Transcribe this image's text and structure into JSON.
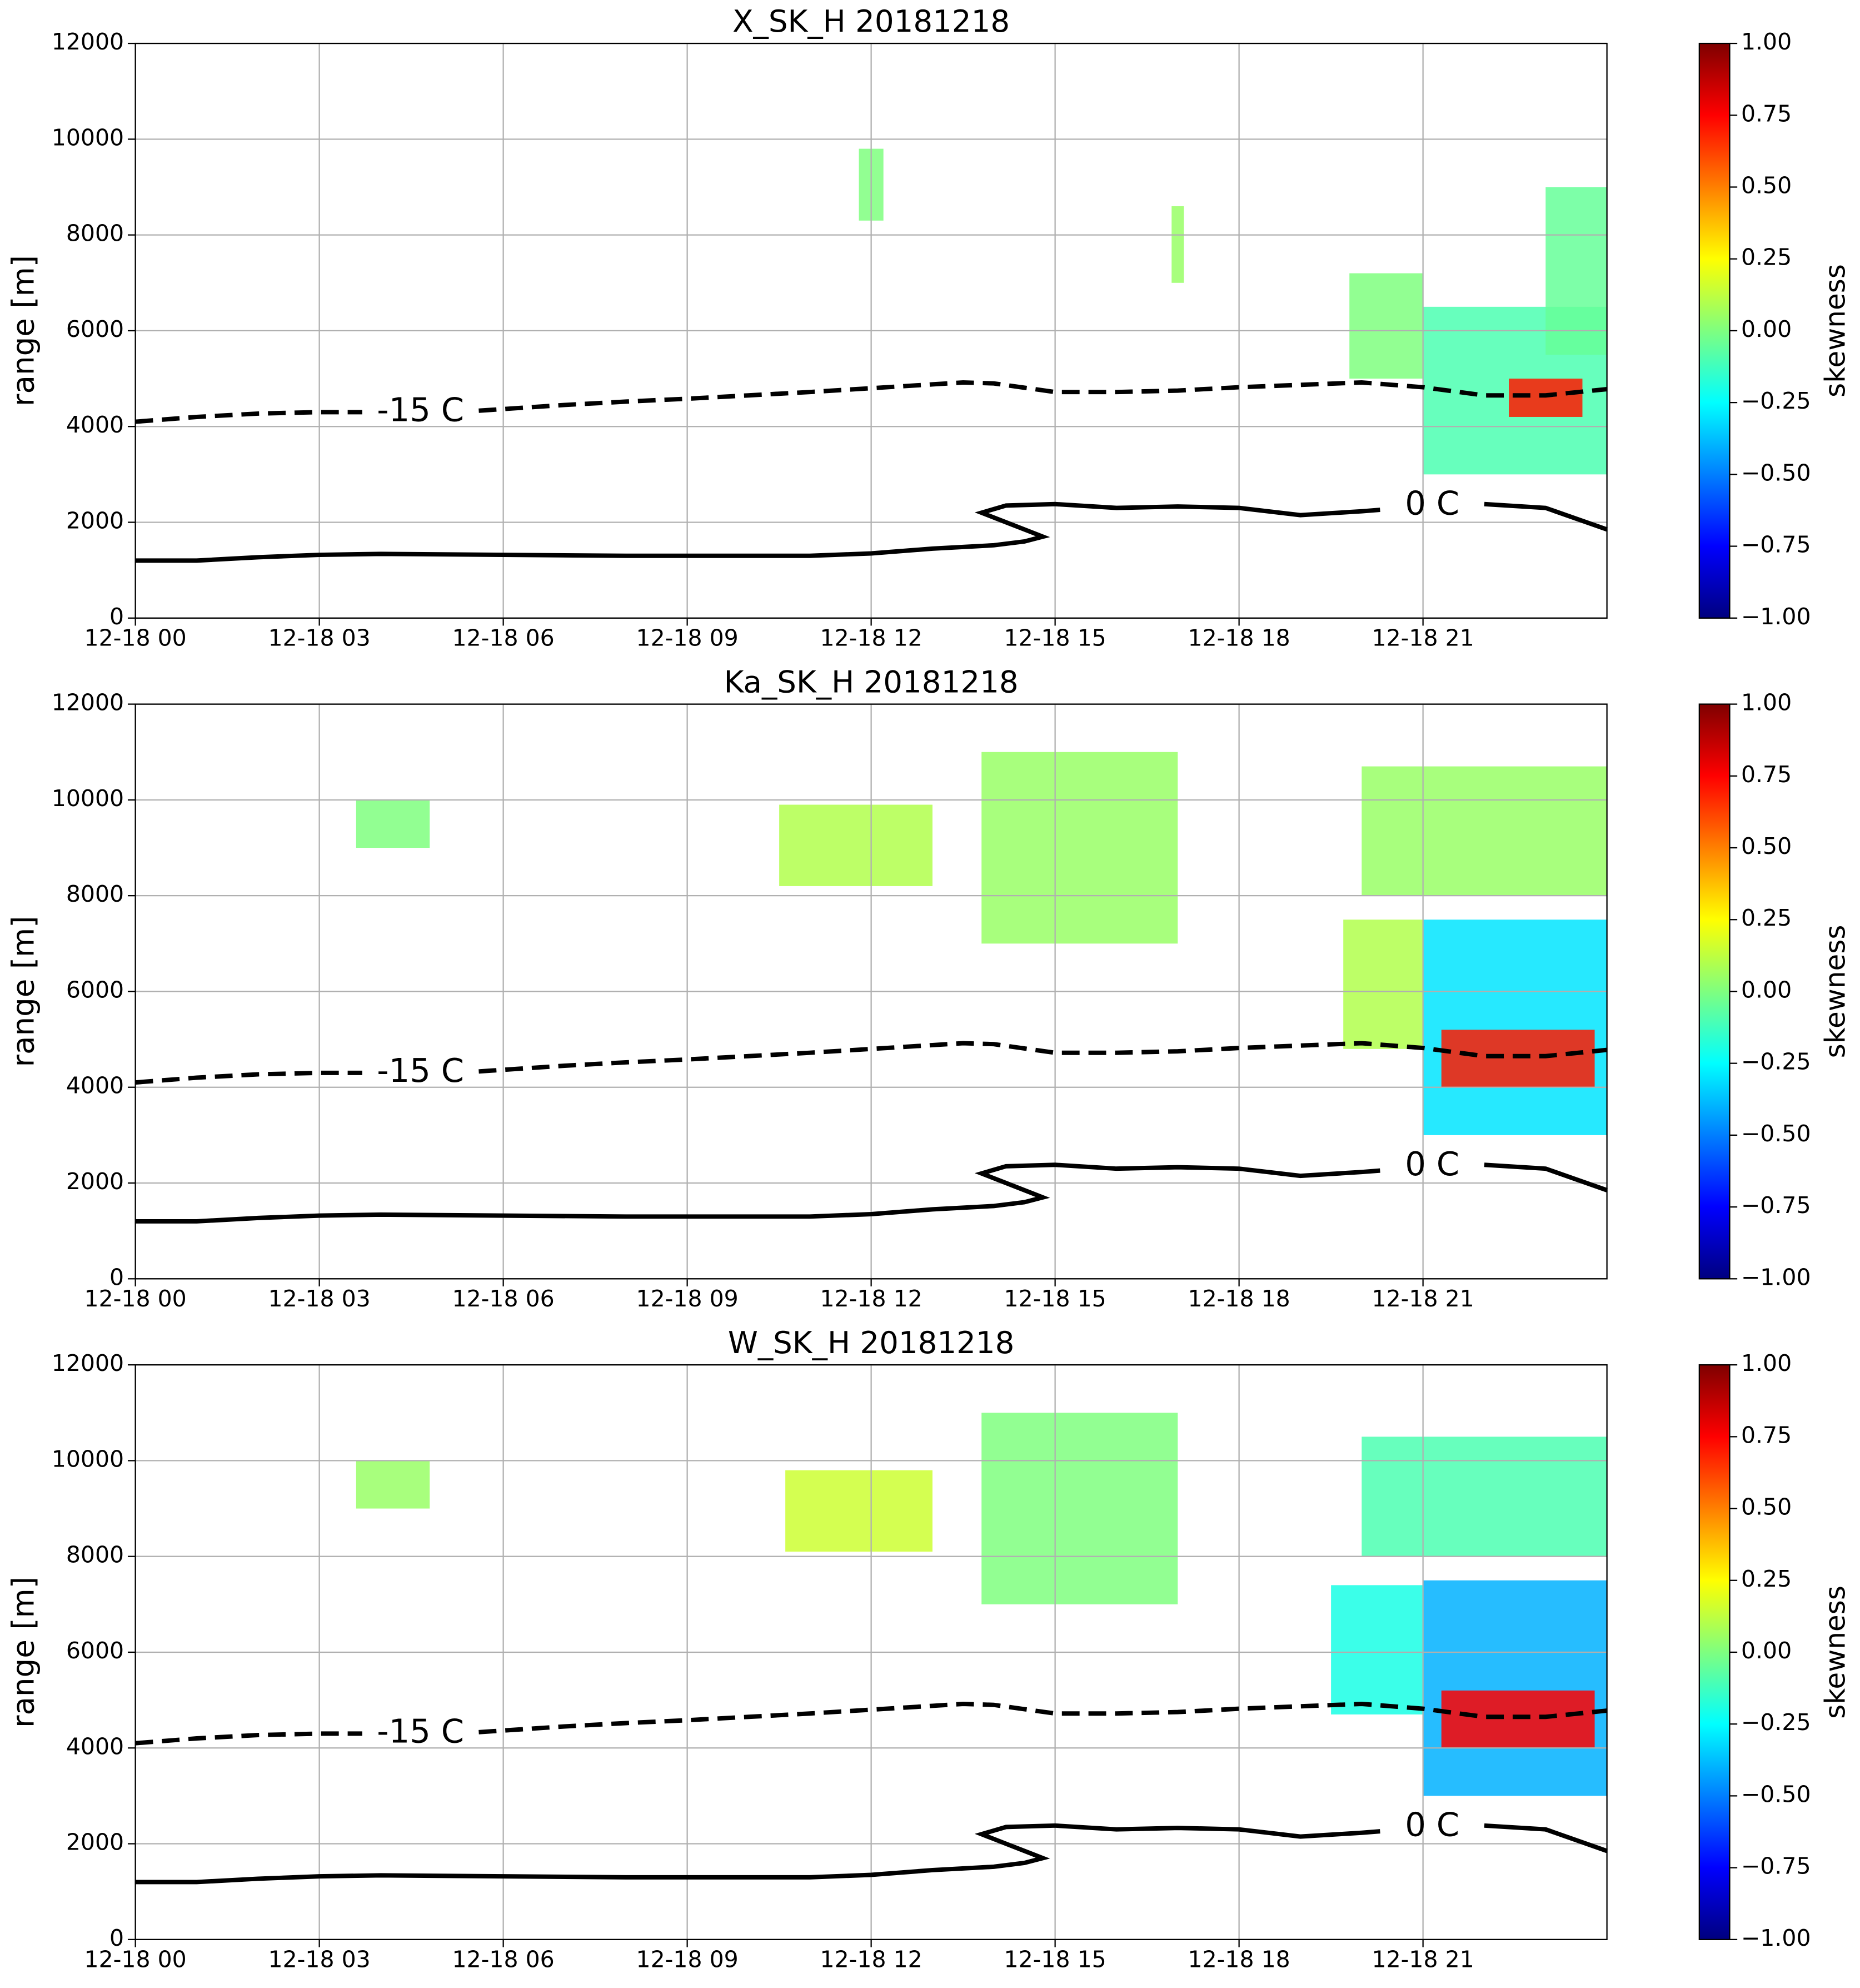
{
  "chart_data": [
    {
      "type": "heatmap",
      "title": "X_SK_H 20181218",
      "ylabel": "range [m]",
      "xlim": [
        0,
        24
      ],
      "ylim": [
        0,
        12000
      ],
      "xticks": [
        {
          "value": 0,
          "label": "12-18 00"
        },
        {
          "value": 3,
          "label": "12-18 03"
        },
        {
          "value": 6,
          "label": "12-18 06"
        },
        {
          "value": 9,
          "label": "12-18 09"
        },
        {
          "value": 12,
          "label": "12-18 12"
        },
        {
          "value": 15,
          "label": "12-18 15"
        },
        {
          "value": 18,
          "label": "12-18 18"
        },
        {
          "value": 21,
          "label": "12-18 21"
        }
      ],
      "yticks": [
        0,
        2000,
        4000,
        6000,
        8000,
        10000,
        12000
      ],
      "grid": true,
      "colorbar": {
        "label": "skewness",
        "clim": [
          -1,
          1
        ],
        "colors": [
          "#00007f",
          "#0000ff",
          "#007fff",
          "#00ffff",
          "#7fff7f",
          "#ffff00",
          "#ff7f00",
          "#ff0000",
          "#7f0000"
        ],
        "ticks": [
          {
            "value": 1,
            "label": "1.00"
          },
          {
            "value": 0.75,
            "label": "0.75"
          },
          {
            "value": 0.5,
            "label": "0.50"
          },
          {
            "value": 0.25,
            "label": "0.25"
          },
          {
            "value": 0,
            "label": "0.00"
          },
          {
            "value": -0.25,
            "label": "−0.25"
          },
          {
            "value": -0.5,
            "label": "−0.50"
          },
          {
            "value": -0.75,
            "label": "−0.75"
          },
          {
            "value": -1,
            "label": "−1.00"
          }
        ]
      },
      "cells": [
        {
          "x": [
            21,
            24
          ],
          "y": [
            3000,
            6500
          ],
          "value": -0.1
        },
        {
          "x": [
            19.8,
            21
          ],
          "y": [
            5000,
            7200
          ],
          "value": 0
        },
        {
          "x": [
            22.4,
            23.6
          ],
          "y": [
            4200,
            5000
          ],
          "value": 0.7
        },
        {
          "x": [
            23,
            24
          ],
          "y": [
            5500,
            9000
          ],
          "value": -0.05
        },
        {
          "x": [
            11.8,
            12.2
          ],
          "y": [
            8300,
            9800
          ],
          "value": 0
        },
        {
          "x": [
            16.9,
            17.1
          ],
          "y": [
            7000,
            8600
          ],
          "value": 0.05
        }
      ],
      "series": [
        {
          "name": "-15 C",
          "dash": true,
          "color": "#000000",
          "x": [
            0,
            1,
            2,
            3,
            3.7,
            null,
            5.6,
            7,
            8,
            9,
            10,
            11,
            12,
            13,
            13.5,
            14,
            15,
            16,
            17,
            18,
            19,
            20,
            21,
            22,
            23,
            24
          ],
          "values": [
            4100,
            4200,
            4270,
            4300,
            4300,
            null,
            4330,
            4450,
            4520,
            4580,
            4650,
            4720,
            4800,
            4880,
            4920,
            4900,
            4720,
            4720,
            4750,
            4820,
            4870,
            4920,
            4820,
            4650,
            4650,
            4780
          ]
        },
        {
          "name": "0 C",
          "dash": false,
          "color": "#000000",
          "x": [
            0,
            1,
            2,
            3,
            4,
            6,
            8,
            11,
            12,
            13,
            14,
            14.5,
            14.8,
            14.6,
            14.2,
            13.8,
            14.2,
            15,
            16,
            17,
            18,
            19,
            20,
            20.3,
            null,
            22,
            23,
            24
          ],
          "values": [
            1200,
            1200,
            1270,
            1320,
            1340,
            1320,
            1300,
            1300,
            1350,
            1450,
            1520,
            1600,
            1700,
            1800,
            2000,
            2200,
            2350,
            2380,
            2300,
            2330,
            2300,
            2150,
            2230,
            2260,
            null,
            2380,
            2300,
            1850
          ]
        }
      ],
      "annotations": [
        {
          "text": "-15 C",
          "x": 4.65,
          "y": 4300
        },
        {
          "text": "0 C",
          "x": 21.15,
          "y": 2350
        }
      ]
    },
    {
      "type": "heatmap",
      "title": "Ka_SK_H 20181218",
      "ylabel": "range [m]",
      "xlim": [
        0,
        24
      ],
      "ylim": [
        0,
        12000
      ],
      "xticks": [
        {
          "value": 0,
          "label": "12-18 00"
        },
        {
          "value": 3,
          "label": "12-18 03"
        },
        {
          "value": 6,
          "label": "12-18 06"
        },
        {
          "value": 9,
          "label": "12-18 09"
        },
        {
          "value": 12,
          "label": "12-18 12"
        },
        {
          "value": 15,
          "label": "12-18 15"
        },
        {
          "value": 18,
          "label": "12-18 18"
        },
        {
          "value": 21,
          "label": "12-18 21"
        }
      ],
      "yticks": [
        0,
        2000,
        4000,
        6000,
        8000,
        10000,
        12000
      ],
      "grid": true,
      "colorbar": {
        "label": "skewness",
        "clim": [
          -1,
          1
        ],
        "colors": [
          "#00007f",
          "#0000ff",
          "#007fff",
          "#00ffff",
          "#7fff7f",
          "#ffff00",
          "#ff7f00",
          "#ff0000",
          "#7f0000"
        ],
        "ticks": [
          {
            "value": 1,
            "label": "1.00"
          },
          {
            "value": 0.75,
            "label": "0.75"
          },
          {
            "value": 0.5,
            "label": "0.50"
          },
          {
            "value": 0.25,
            "label": "0.25"
          },
          {
            "value": 0,
            "label": "0.00"
          },
          {
            "value": -0.25,
            "label": "−0.25"
          },
          {
            "value": -0.5,
            "label": "−0.50"
          },
          {
            "value": -0.75,
            "label": "−0.75"
          },
          {
            "value": -1,
            "label": "−1.00"
          }
        ]
      },
      "cells": [
        {
          "x": [
            20,
            24
          ],
          "y": [
            8000,
            10700
          ],
          "value": 0.05
        },
        {
          "x": [
            21,
            24
          ],
          "y": [
            3000,
            7500
          ],
          "value": -0.3
        },
        {
          "x": [
            19.7,
            21
          ],
          "y": [
            4800,
            7500
          ],
          "value": 0.1
        },
        {
          "x": [
            21.3,
            23.8
          ],
          "y": [
            4000,
            5200
          ],
          "value": 0.7
        },
        {
          "x": [
            10.5,
            13
          ],
          "y": [
            8200,
            9900
          ],
          "value": 0.1
        },
        {
          "x": [
            13.8,
            17
          ],
          "y": [
            7000,
            11000
          ],
          "value": 0.05
        },
        {
          "x": [
            3.6,
            4.8
          ],
          "y": [
            9000,
            10000
          ],
          "value": 0
        }
      ],
      "series": [
        {
          "name": "-15 C",
          "dash": true,
          "color": "#000000",
          "x": [
            0,
            1,
            2,
            3,
            3.7,
            null,
            5.6,
            7,
            8,
            9,
            10,
            11,
            12,
            13,
            13.5,
            14,
            15,
            16,
            17,
            18,
            19,
            20,
            21,
            22,
            23,
            24
          ],
          "values": [
            4100,
            4200,
            4270,
            4300,
            4300,
            null,
            4330,
            4450,
            4520,
            4580,
            4650,
            4720,
            4800,
            4880,
            4920,
            4900,
            4720,
            4720,
            4750,
            4820,
            4870,
            4920,
            4820,
            4650,
            4650,
            4780
          ]
        },
        {
          "name": "0 C",
          "dash": false,
          "color": "#000000",
          "x": [
            0,
            1,
            2,
            3,
            4,
            6,
            8,
            11,
            12,
            13,
            14,
            14.5,
            14.8,
            14.6,
            14.2,
            13.8,
            14.2,
            15,
            16,
            17,
            18,
            19,
            20,
            20.3,
            null,
            22,
            23,
            24
          ],
          "values": [
            1200,
            1200,
            1270,
            1320,
            1340,
            1320,
            1300,
            1300,
            1350,
            1450,
            1520,
            1600,
            1700,
            1800,
            2000,
            2200,
            2350,
            2380,
            2300,
            2330,
            2300,
            2150,
            2230,
            2260,
            null,
            2380,
            2300,
            1850
          ]
        }
      ],
      "annotations": [
        {
          "text": "-15 C",
          "x": 4.65,
          "y": 4300
        },
        {
          "text": "0 C",
          "x": 21.15,
          "y": 2350
        }
      ]
    },
    {
      "type": "heatmap",
      "title": "W_SK_H 20181218",
      "ylabel": "range [m]",
      "xlim": [
        0,
        24
      ],
      "ylim": [
        0,
        12000
      ],
      "xticks": [
        {
          "value": 0,
          "label": "12-18 00"
        },
        {
          "value": 3,
          "label": "12-18 03"
        },
        {
          "value": 6,
          "label": "12-18 06"
        },
        {
          "value": 9,
          "label": "12-18 09"
        },
        {
          "value": 12,
          "label": "12-18 12"
        },
        {
          "value": 15,
          "label": "12-18 15"
        },
        {
          "value": 18,
          "label": "12-18 18"
        },
        {
          "value": 21,
          "label": "12-18 21"
        }
      ],
      "yticks": [
        0,
        2000,
        4000,
        6000,
        8000,
        10000,
        12000
      ],
      "grid": true,
      "colorbar": {
        "label": "skewness",
        "clim": [
          -1,
          1
        ],
        "colors": [
          "#00007f",
          "#0000ff",
          "#007fff",
          "#00ffff",
          "#7fff7f",
          "#ffff00",
          "#ff7f00",
          "#ff0000",
          "#7f0000"
        ],
        "ticks": [
          {
            "value": 1,
            "label": "1.00"
          },
          {
            "value": 0.75,
            "label": "0.75"
          },
          {
            "value": 0.5,
            "label": "0.50"
          },
          {
            "value": 0.25,
            "label": "0.25"
          },
          {
            "value": 0,
            "label": "0.00"
          },
          {
            "value": -0.25,
            "label": "−0.25"
          },
          {
            "value": -0.5,
            "label": "−0.50"
          },
          {
            "value": -0.75,
            "label": "−0.75"
          },
          {
            "value": -1,
            "label": "−1.00"
          }
        ]
      },
      "cells": [
        {
          "x": [
            20,
            24
          ],
          "y": [
            8000,
            10500
          ],
          "value": -0.1
        },
        {
          "x": [
            21,
            24
          ],
          "y": [
            3000,
            7500
          ],
          "value": -0.4
        },
        {
          "x": [
            19.5,
            21
          ],
          "y": [
            4700,
            7400
          ],
          "value": -0.2
        },
        {
          "x": [
            21.3,
            23.8
          ],
          "y": [
            4000,
            5200
          ],
          "value": 0.75
        },
        {
          "x": [
            10.6,
            13
          ],
          "y": [
            8100,
            9800
          ],
          "value": 0.15
        },
        {
          "x": [
            13.8,
            17
          ],
          "y": [
            7000,
            11000
          ],
          "value": 0
        },
        {
          "x": [
            3.6,
            4.8
          ],
          "y": [
            9000,
            10000
          ],
          "value": 0.05
        }
      ],
      "series": [
        {
          "name": "-15 C",
          "dash": true,
          "color": "#000000",
          "x": [
            0,
            1,
            2,
            3,
            3.7,
            null,
            5.6,
            7,
            8,
            9,
            10,
            11,
            12,
            13,
            13.5,
            14,
            15,
            16,
            17,
            18,
            19,
            20,
            21,
            22,
            23,
            24
          ],
          "values": [
            4100,
            4200,
            4270,
            4300,
            4300,
            null,
            4330,
            4450,
            4520,
            4580,
            4650,
            4720,
            4800,
            4880,
            4920,
            4900,
            4720,
            4720,
            4750,
            4820,
            4870,
            4920,
            4820,
            4650,
            4650,
            4780
          ]
        },
        {
          "name": "0 C",
          "dash": false,
          "color": "#000000",
          "x": [
            0,
            1,
            2,
            3,
            4,
            6,
            8,
            11,
            12,
            13,
            14,
            14.5,
            14.8,
            14.6,
            14.2,
            13.8,
            14.2,
            15,
            16,
            17,
            18,
            19,
            20,
            20.3,
            null,
            22,
            23,
            24
          ],
          "values": [
            1200,
            1200,
            1270,
            1320,
            1340,
            1320,
            1300,
            1300,
            1350,
            1450,
            1520,
            1600,
            1700,
            1800,
            2000,
            2200,
            2350,
            2380,
            2300,
            2330,
            2300,
            2150,
            2230,
            2260,
            null,
            2380,
            2300,
            1850
          ]
        }
      ],
      "annotations": [
        {
          "text": "-15 C",
          "x": 4.65,
          "y": 4300
        },
        {
          "text": "0 C",
          "x": 21.15,
          "y": 2350
        }
      ]
    }
  ]
}
